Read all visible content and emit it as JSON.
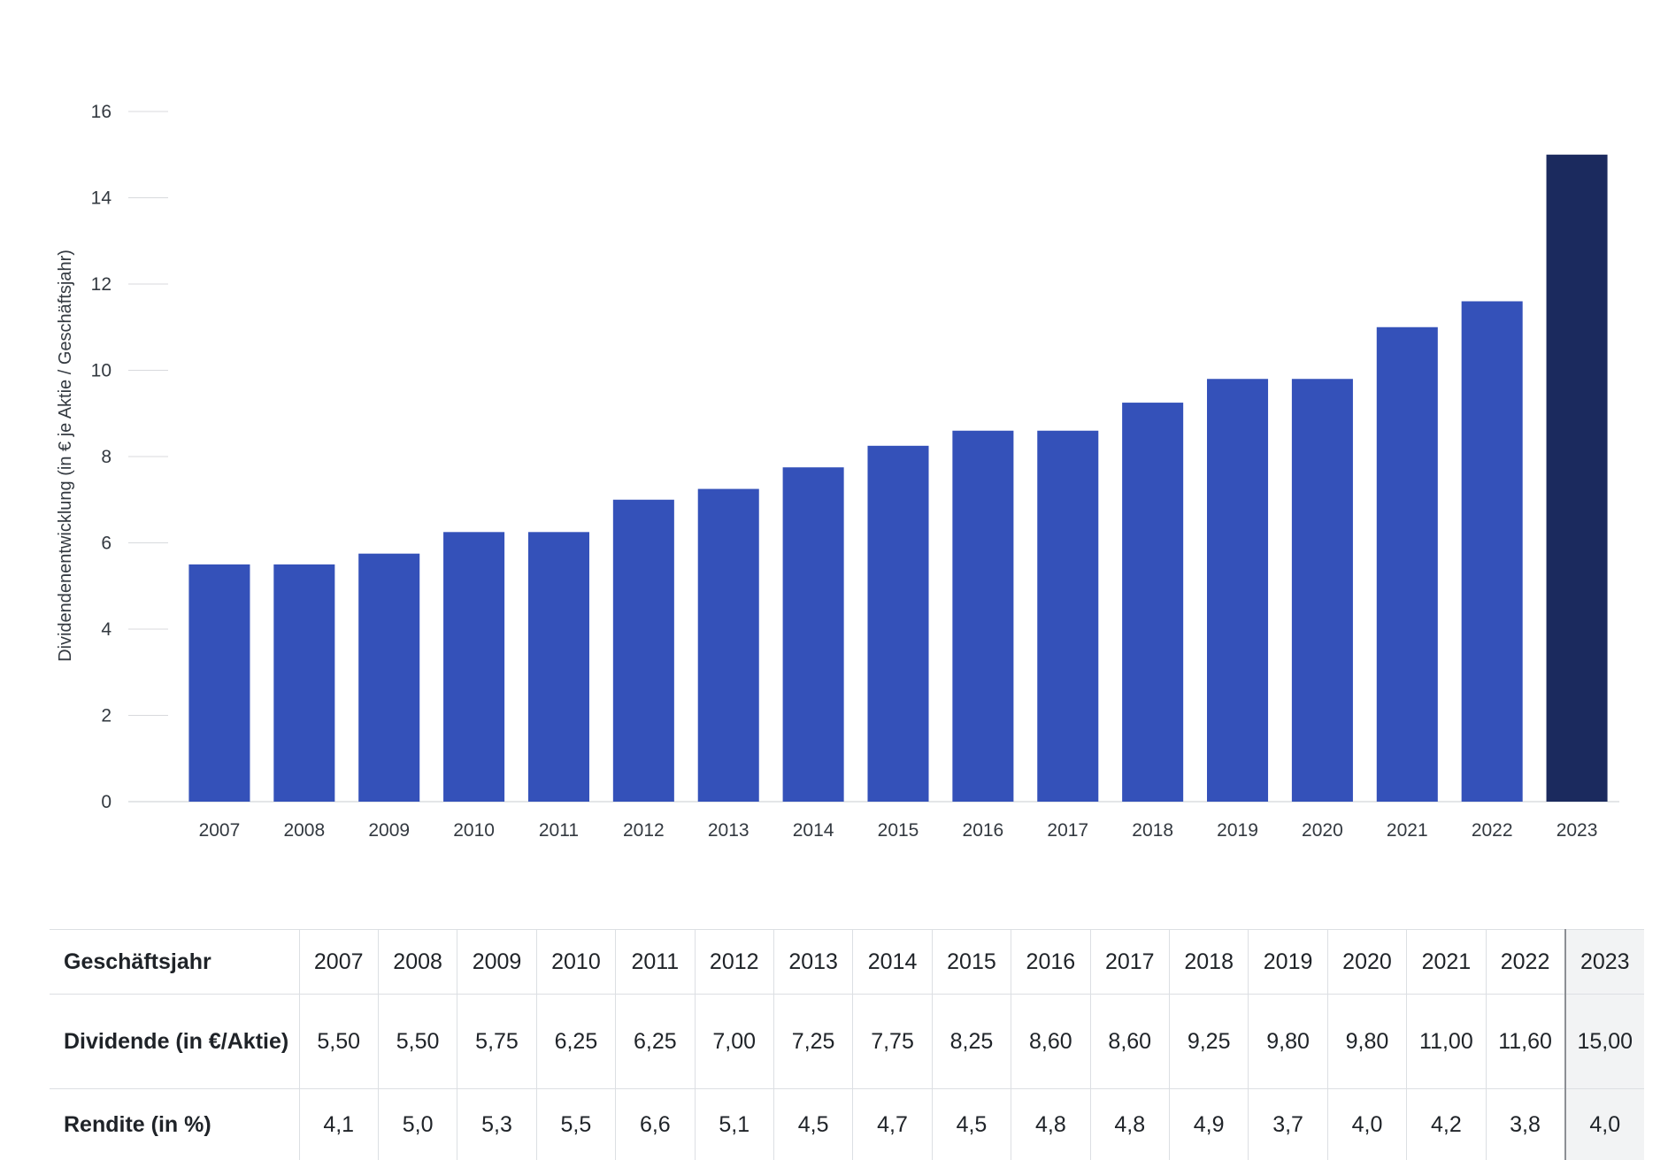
{
  "colors": {
    "bar": "#3451b9",
    "bar_highlight": "#1b2a5e",
    "grid": "#d8dadd",
    "axis_text": "#333940",
    "table_highlight_bg": "#f2f3f4"
  },
  "chart_data": {
    "type": "bar",
    "title": "",
    "xlabel": "",
    "ylabel": "Dividendenentwicklung (in € je Aktie / Geschäftsjahr)",
    "ylim": [
      0,
      16
    ],
    "yticks": [
      0,
      2,
      4,
      6,
      8,
      10,
      12,
      14,
      16
    ],
    "grid": "horizontal",
    "categories": [
      "2007",
      "2008",
      "2009",
      "2010",
      "2011",
      "2012",
      "2013",
      "2014",
      "2015",
      "2016",
      "2017",
      "2018",
      "2019",
      "2020",
      "2021",
      "2022",
      "2023"
    ],
    "values": [
      5.5,
      5.5,
      5.75,
      6.25,
      6.25,
      7.0,
      7.25,
      7.75,
      8.25,
      8.6,
      8.6,
      9.25,
      9.8,
      9.8,
      11.0,
      11.6,
      15.0
    ],
    "highlight_category": "2023"
  },
  "table": {
    "row_labels": {
      "year": "Geschäftsjahr",
      "dividend": "Dividende (in €/Aktie)",
      "yield": "Rendite (in %)"
    },
    "years": [
      "2007",
      "2008",
      "2009",
      "2010",
      "2011",
      "2012",
      "2013",
      "2014",
      "2015",
      "2016",
      "2017",
      "2018",
      "2019",
      "2020",
      "2021",
      "2022",
      "2023"
    ],
    "dividend": [
      "5,50",
      "5,50",
      "5,75",
      "6,25",
      "6,25",
      "7,00",
      "7,25",
      "7,75",
      "8,25",
      "8,60",
      "8,60",
      "9,25",
      "9,80",
      "9,80",
      "11,00",
      "11,60",
      "15,00"
    ],
    "yield": [
      "4,1",
      "5,0",
      "5,3",
      "5,5",
      "6,6",
      "5,1",
      "4,5",
      "4,7",
      "4,5",
      "4,8",
      "4,8",
      "4,9",
      "3,7",
      "4,0",
      "4,2",
      "3,8",
      "4,0"
    ],
    "highlight_column": "2023"
  }
}
